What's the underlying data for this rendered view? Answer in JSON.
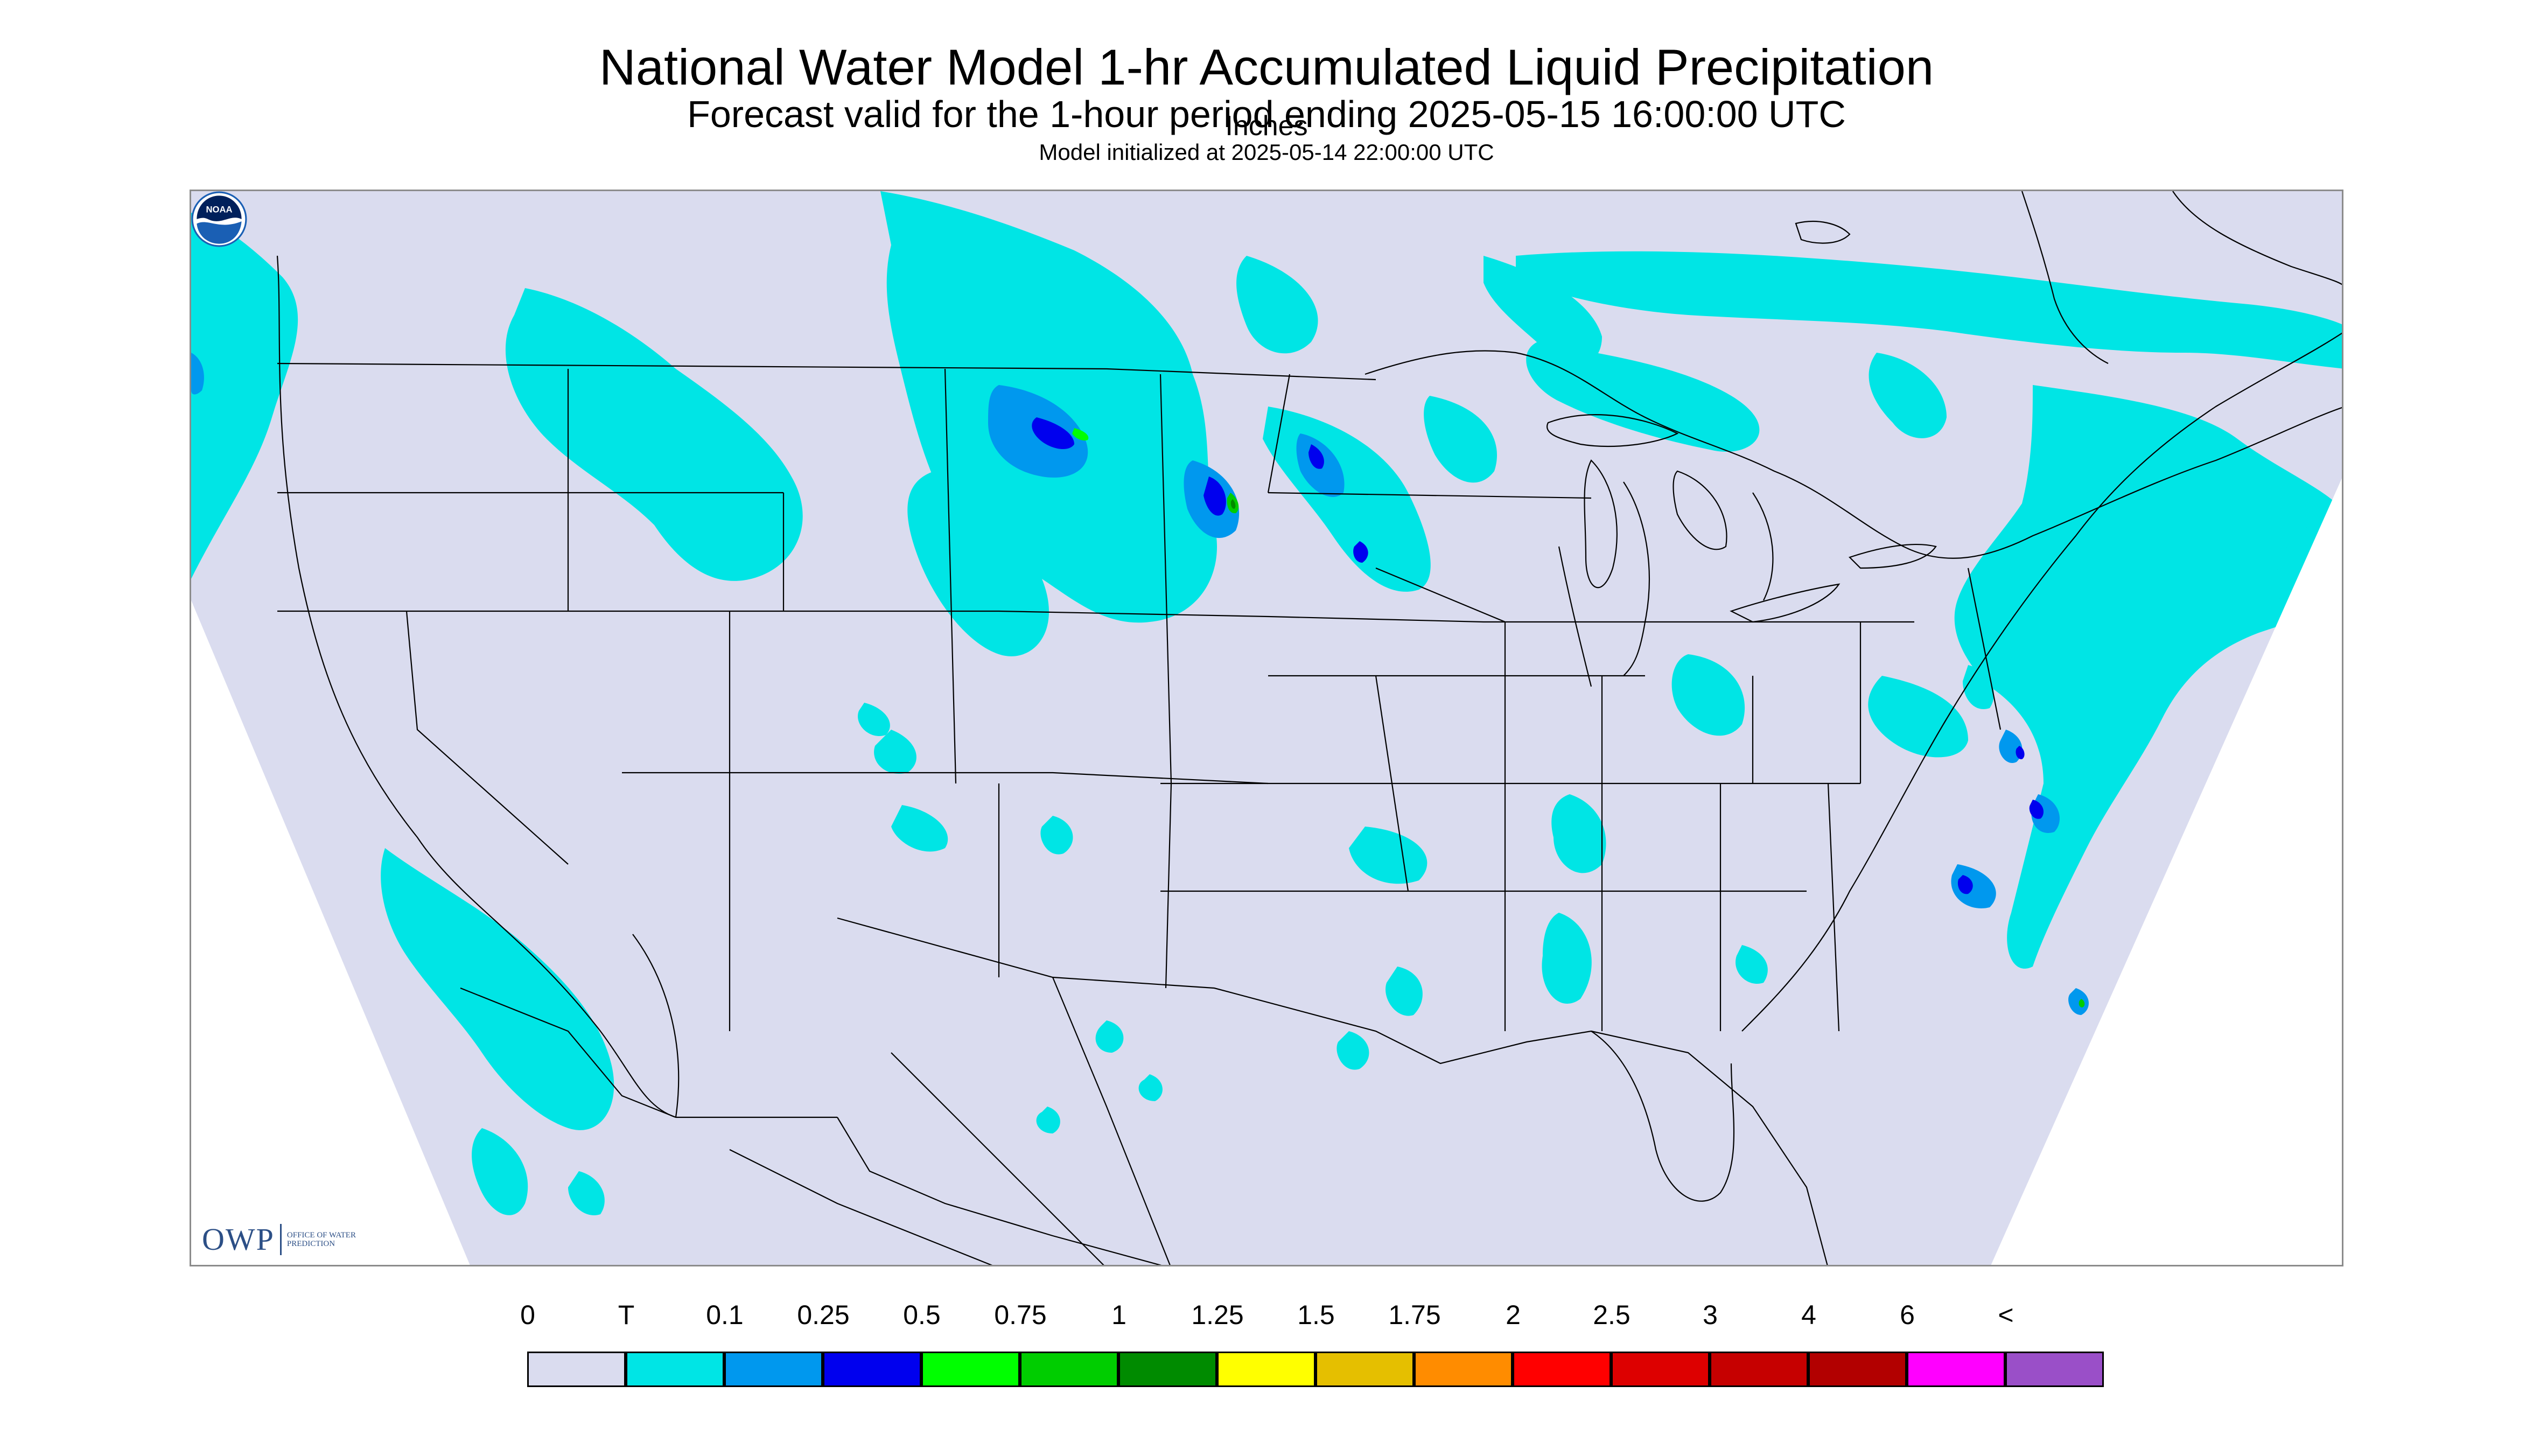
{
  "header": {
    "title": "National Water Model 1-hr Accumulated Liquid Precipitation",
    "subtitle": "Forecast valid for the 1-hour period ending 2025-05-15 16:00:00 UTC",
    "init": "Model initialized at 2025-05-14 22:00:00 UTC"
  },
  "map": {
    "background_color": "#dadcef",
    "outside_color": "#ffffff",
    "boundary_color": "#000000",
    "precip_areas": [
      {
        "region": "Pacific Northwest / BC coast",
        "category": "T"
      },
      {
        "region": "Idaho / western Montana",
        "category": "T"
      },
      {
        "region": "Saskatchewan / North Dakota",
        "category": "0.1"
      },
      {
        "region": "South Dakota / Minnesota",
        "category": "0.5"
      },
      {
        "region": "Ontario / Quebec",
        "category": "T"
      },
      {
        "region": "Northeast US",
        "category": "0.1"
      },
      {
        "region": "Mid-Atlantic offshore",
        "category": "0.25"
      },
      {
        "region": "Pacific offshore Baja",
        "category": "T"
      },
      {
        "region": "Oklahoma / Arkansas",
        "category": "T"
      }
    ],
    "logos": {
      "owp": {
        "word": "OWP",
        "sub": "OFFICE OF WATER PREDICTION"
      },
      "noaa": {
        "word": "NOAA"
      }
    }
  },
  "legend": {
    "labels": [
      "0",
      "T",
      "0.1",
      "0.25",
      "0.5",
      "0.75",
      "1",
      "1.25",
      "1.5",
      "1.75",
      "2",
      "2.5",
      "3",
      "4",
      "6",
      "<"
    ],
    "colors": [
      "#dadcef",
      "#00e5e5",
      "#0098ee",
      "#0000ee",
      "#00ff00",
      "#00cd00",
      "#008b00",
      "#ffff00",
      "#e5bf00",
      "#ff8c00",
      "#ff0000",
      "#dd0000",
      "#c60000",
      "#b20000",
      "#ff00ff",
      "#9a4fc8"
    ],
    "units": "Inches"
  }
}
